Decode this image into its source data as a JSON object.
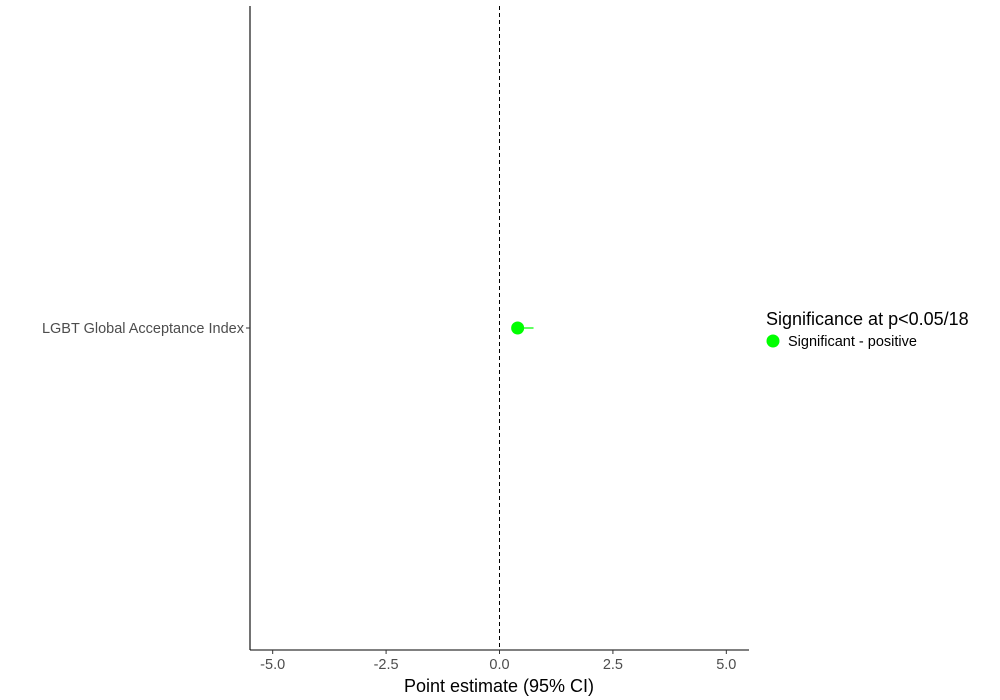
{
  "chart_data": {
    "type": "scatter",
    "subtype": "forest-plot",
    "title": "",
    "xlabel": "Point estimate (95% CI)",
    "ylabel": "",
    "xlim": [
      -5.5,
      5.5
    ],
    "x_ticks": [
      -5.0,
      -2.5,
      0.0,
      2.5,
      5.0
    ],
    "x_tick_labels": [
      "-5.0",
      "-2.5",
      "0.0",
      "2.5",
      "5.0"
    ],
    "reference_line_x": 0.0,
    "reference_line_style": "dashed",
    "grid": false,
    "categories": [
      "LGBT Global Acceptance Index"
    ],
    "points": [
      {
        "category": "LGBT Global Acceptance Index",
        "estimate": 0.4,
        "ci_low": 0.35,
        "ci_high": 0.75,
        "group": "Significant - positive"
      }
    ],
    "legend": {
      "title": "Significance at p<0.05/18",
      "position": "right",
      "entries": [
        {
          "label": "Significant - positive",
          "color": "#00ff00"
        }
      ]
    },
    "colors": {
      "Significant - positive": "#00ff00",
      "axis": "#000000",
      "tick_text": "#4d4d4d"
    }
  }
}
